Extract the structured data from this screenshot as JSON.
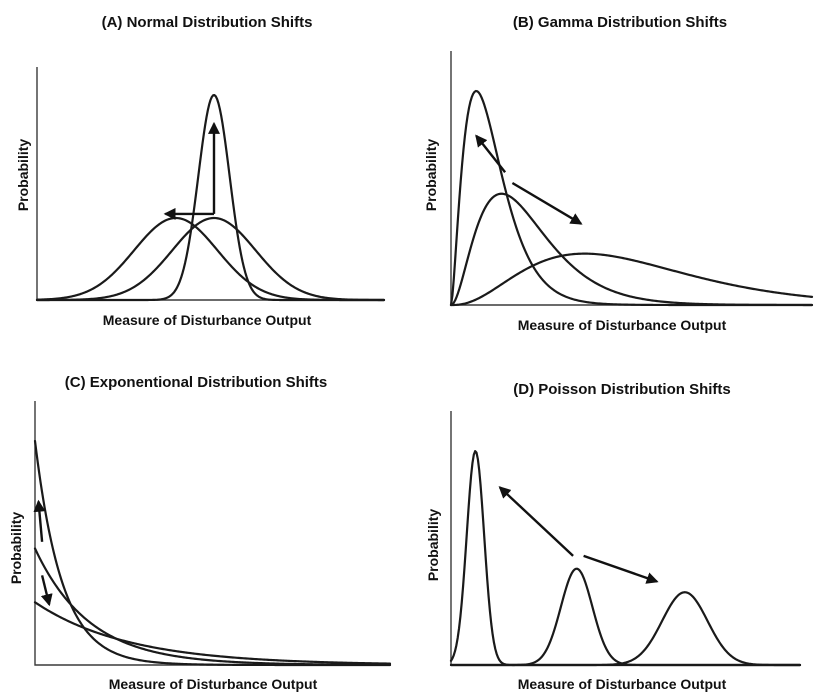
{
  "chart_data": [
    {
      "type": "line",
      "title": "(A) Normal Distribution Shifts",
      "xlabel": "Measure of Disturbance Output",
      "ylabel": "Probability",
      "xlim": [
        0,
        1
      ],
      "ylim": [
        0,
        1
      ],
      "series": [
        {
          "kind": "normal",
          "mean": 0.4,
          "sd": 0.12,
          "peak": 0.4
        },
        {
          "kind": "normal",
          "mean": 0.51,
          "sd": 0.12,
          "peak": 0.4
        },
        {
          "kind": "normal",
          "mean": 0.51,
          "sd": 0.045,
          "peak": 1.0
        }
      ],
      "arrows": [
        {
          "from": [
            0.51,
            0.42
          ],
          "to": [
            0.37,
            0.42
          ]
        },
        {
          "from": [
            0.51,
            0.42
          ],
          "to": [
            0.51,
            0.86
          ]
        }
      ]
    },
    {
      "type": "line",
      "title": "(B) Gamma Distribution Shifts",
      "xlabel": "Measure of Disturbance Output",
      "ylabel": "Probability",
      "xlim": [
        0,
        1
      ],
      "ylim": [
        0,
        1
      ],
      "series": [
        {
          "kind": "gamma",
          "mode": 0.07,
          "shape": 2.6,
          "peak": 1.0
        },
        {
          "kind": "gamma",
          "mode": 0.14,
          "shape": 3.0,
          "peak": 0.52
        },
        {
          "kind": "gamma",
          "mode": 0.37,
          "shape": 3.6,
          "peak": 0.24
        }
      ],
      "arrows": [
        {
          "from": [
            0.15,
            0.62
          ],
          "to": [
            0.07,
            0.79
          ]
        },
        {
          "from": [
            0.17,
            0.57
          ],
          "to": [
            0.36,
            0.38
          ]
        }
      ]
    },
    {
      "type": "line",
      "title": "(C) Exponentional Distribution Shifts",
      "xlabel": "Measure of Disturbance Output",
      "ylabel": "Probability",
      "xlim": [
        0,
        1
      ],
      "ylim": [
        0,
        1
      ],
      "series": [
        {
          "kind": "exponential",
          "start": 1.0,
          "rate": 13.0
        },
        {
          "kind": "exponential",
          "start": 0.52,
          "rate": 6.5
        },
        {
          "kind": "exponential",
          "start": 0.28,
          "rate": 3.8
        }
      ],
      "arrows": [
        {
          "from": [
            0.02,
            0.55
          ],
          "to": [
            0.01,
            0.73
          ]
        },
        {
          "from": [
            0.02,
            0.4
          ],
          "to": [
            0.04,
            0.27
          ]
        }
      ]
    },
    {
      "type": "line",
      "title": "(D) Poisson Distribution Shifts",
      "xlabel": "Measure of Disturbance Output",
      "ylabel": "Probability",
      "xlim": [
        0,
        1
      ],
      "ylim": [
        0,
        1
      ],
      "series": [
        {
          "kind": "peak",
          "mean": 0.07,
          "sd": 0.025,
          "peak": 1.0
        },
        {
          "kind": "peak",
          "mean": 0.36,
          "sd": 0.045,
          "peak": 0.45
        },
        {
          "kind": "peak",
          "mean": 0.67,
          "sd": 0.065,
          "peak": 0.34
        }
      ],
      "arrows": [
        {
          "from": [
            0.35,
            0.51
          ],
          "to": [
            0.14,
            0.83
          ]
        },
        {
          "from": [
            0.38,
            0.51
          ],
          "to": [
            0.59,
            0.39
          ]
        }
      ]
    }
  ]
}
